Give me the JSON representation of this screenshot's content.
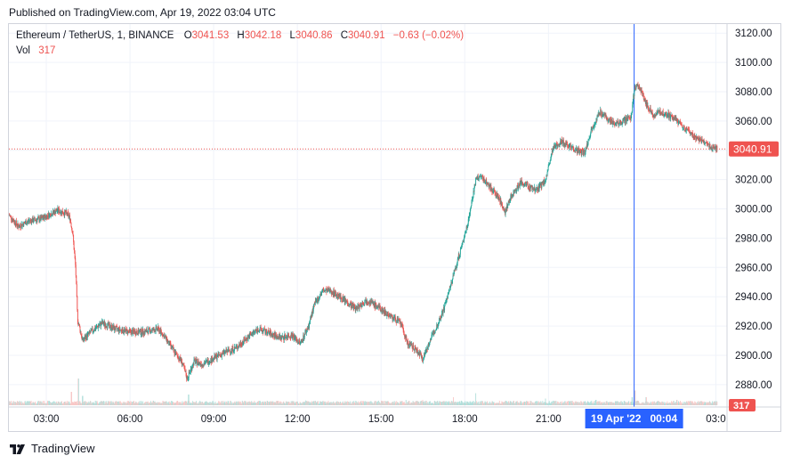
{
  "header": {
    "published": "Published on TradingView.com, Apr 19, 2022 03:04 UTC"
  },
  "legend": {
    "symbol": "Ethereum / TetherUS, 1, BINANCE",
    "o_label": "O",
    "o_value": "3041.53",
    "h_label": "H",
    "h_value": "3042.18",
    "l_label": "L",
    "l_value": "3040.86",
    "c_label": "C",
    "c_value": "3040.91",
    "change": "−0.63 (−0.02%)",
    "vol_label": "Vol",
    "vol_value": "317"
  },
  "colors": {
    "up": "#26a69a",
    "down": "#ef5350",
    "vol_up": "#b2dfdb",
    "vol_down": "#f8c8c7",
    "price_tag": "#ef5350",
    "crosshair": "#2962ff",
    "grid": "#f0f3fa",
    "text": "#131722",
    "axis_text": "#131722"
  },
  "footer": {
    "brand": "TradingView"
  },
  "chart_data": {
    "type": "candlestick",
    "symbol": "Ethereum / TetherUS",
    "interval": "1",
    "exchange": "BINANCE",
    "y_ticks": [
      3120,
      3100,
      3080,
      3060,
      3040,
      3020,
      3000,
      2980,
      2960,
      2940,
      2920,
      2900,
      2880
    ],
    "ylim": [
      2872,
      3125
    ],
    "x_ticks": [
      "03:00",
      "06:00",
      "09:00",
      "12:00",
      "15:00",
      "18:00",
      "21:00",
      "03:0"
    ],
    "x_tick_hours": [
      3,
      6,
      9,
      12,
      15,
      18,
      21,
      27
    ],
    "xlim_hours": [
      1.66,
      27.4
    ],
    "last_price": "3040.91",
    "last_price_value": 3040.91,
    "volume_tag": "317",
    "crosshair_label": "19 Apr '22   00:04",
    "crosshair_hour": 24.07,
    "price_path": [
      [
        1.66,
        2996
      ],
      [
        2.0,
        2988
      ],
      [
        2.4,
        2992
      ],
      [
        2.8,
        2993
      ],
      [
        3.1,
        2996
      ],
      [
        3.4,
        2999
      ],
      [
        3.7,
        2997
      ],
      [
        3.85,
        2994
      ],
      [
        3.95,
        2983
      ],
      [
        4.05,
        2960
      ],
      [
        4.12,
        2925
      ],
      [
        4.3,
        2910
      ],
      [
        4.6,
        2916
      ],
      [
        5.0,
        2922
      ],
      [
        5.5,
        2918
      ],
      [
        6.0,
        2916
      ],
      [
        6.5,
        2916
      ],
      [
        7.0,
        2918
      ],
      [
        7.2,
        2914
      ],
      [
        7.6,
        2902
      ],
      [
        7.85,
        2896
      ],
      [
        8.05,
        2884
      ],
      [
        8.3,
        2896
      ],
      [
        8.6,
        2894
      ],
      [
        9.0,
        2898
      ],
      [
        9.4,
        2902
      ],
      [
        9.8,
        2905
      ],
      [
        10.2,
        2912
      ],
      [
        10.6,
        2918
      ],
      [
        11.0,
        2915
      ],
      [
        11.4,
        2912
      ],
      [
        11.8,
        2914
      ],
      [
        12.1,
        2908
      ],
      [
        12.4,
        2920
      ],
      [
        12.6,
        2934
      ],
      [
        12.9,
        2944
      ],
      [
        13.2,
        2944
      ],
      [
        13.5,
        2940
      ],
      [
        13.8,
        2936
      ],
      [
        14.1,
        2932
      ],
      [
        14.5,
        2938
      ],
      [
        14.8,
        2934
      ],
      [
        15.1,
        2930
      ],
      [
        15.4,
        2926
      ],
      [
        15.7,
        2922
      ],
      [
        15.95,
        2908
      ],
      [
        16.25,
        2904
      ],
      [
        16.5,
        2898
      ],
      [
        16.75,
        2910
      ],
      [
        17.0,
        2920
      ],
      [
        17.25,
        2932
      ],
      [
        17.5,
        2948
      ],
      [
        17.7,
        2962
      ],
      [
        17.9,
        2975
      ],
      [
        18.1,
        2990
      ],
      [
        18.25,
        3005
      ],
      [
        18.4,
        3020
      ],
      [
        18.6,
        3022
      ],
      [
        18.9,
        3015
      ],
      [
        19.2,
        3008
      ],
      [
        19.45,
        2998
      ],
      [
        19.7,
        3010
      ],
      [
        20.0,
        3018
      ],
      [
        20.3,
        3015
      ],
      [
        20.6,
        3013
      ],
      [
        20.9,
        3020
      ],
      [
        21.15,
        3040
      ],
      [
        21.4,
        3046
      ],
      [
        21.7,
        3044
      ],
      [
        22.0,
        3040
      ],
      [
        22.3,
        3038
      ],
      [
        22.55,
        3055
      ],
      [
        22.85,
        3066
      ],
      [
        23.1,
        3062
      ],
      [
        23.4,
        3058
      ],
      [
        23.7,
        3060
      ],
      [
        23.95,
        3062
      ],
      [
        24.1,
        3084
      ],
      [
        24.3,
        3082
      ],
      [
        24.5,
        3072
      ],
      [
        24.75,
        3064
      ],
      [
        25.0,
        3066
      ],
      [
        25.3,
        3064
      ],
      [
        25.6,
        3060
      ],
      [
        25.9,
        3055
      ],
      [
        26.2,
        3050
      ],
      [
        26.5,
        3046
      ],
      [
        26.85,
        3042
      ],
      [
        27.05,
        3040.9
      ]
    ],
    "volume_spikes": [
      [
        2.8,
        0.15
      ],
      [
        3.9,
        0.5
      ],
      [
        4.15,
        1.0
      ],
      [
        4.3,
        0.35
      ],
      [
        7.3,
        0.15
      ],
      [
        8.1,
        0.4
      ],
      [
        12.3,
        0.18
      ],
      [
        15.9,
        0.2
      ],
      [
        16.5,
        0.2
      ],
      [
        17.6,
        0.3
      ],
      [
        18.4,
        0.45
      ],
      [
        20.9,
        0.25
      ],
      [
        22.7,
        0.2
      ],
      [
        24.0,
        0.3
      ],
      [
        24.1,
        0.55
      ],
      [
        24.5,
        0.3
      ],
      [
        25.6,
        0.2
      ]
    ]
  }
}
